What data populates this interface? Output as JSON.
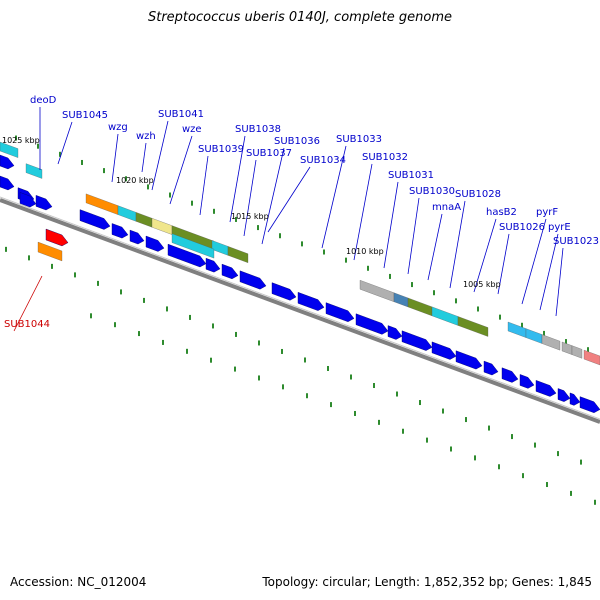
{
  "title": "Streptococcus uberis 0140J, complete genome",
  "footer": {
    "accession": "Accession: NC_012004",
    "info": "Topology: circular; Length: 1,852,352 bp; Genes: 1,845"
  },
  "colors": {
    "backbone": "#808080",
    "gene_arrow": "#0000ee",
    "label_blue": "#0000cc",
    "label_red": "#cc0000",
    "tick": "#2e8b2e",
    "cog_orange": "#ff8c00",
    "cog_cyan": "#22ccdd",
    "cog_olive": "#6b8e23",
    "cog_yellow": "#f0e68c",
    "cog_lightblue": "#33bbee",
    "cog_gray": "#b0b0b0",
    "cog_steel": "#4682b4",
    "cog_salmon": "#f08080",
    "highlight_red": "#ff0000"
  },
  "kbp_labels": [
    "1025 kbp",
    "1020 kbp",
    "1015 kbp",
    "1010 kbp",
    "1005 kbp"
  ],
  "gene_labels": [
    {
      "text": "deoD",
      "color": "blue"
    },
    {
      "text": "SUB1045",
      "color": "blue"
    },
    {
      "text": "wzg",
      "color": "blue"
    },
    {
      "text": "wzh",
      "color": "blue"
    },
    {
      "text": "SUB1041",
      "color": "blue"
    },
    {
      "text": "wze",
      "color": "blue"
    },
    {
      "text": "SUB1038",
      "color": "blue"
    },
    {
      "text": "SUB1039",
      "color": "blue"
    },
    {
      "text": "SUB1036",
      "color": "blue"
    },
    {
      "text": "SUB1037",
      "color": "blue"
    },
    {
      "text": "SUB1034",
      "color": "blue"
    },
    {
      "text": "SUB1033",
      "color": "blue"
    },
    {
      "text": "SUB1032",
      "color": "blue"
    },
    {
      "text": "SUB1031",
      "color": "blue"
    },
    {
      "text": "SUB1030",
      "color": "blue"
    },
    {
      "text": "mnaA",
      "color": "blue"
    },
    {
      "text": "SUB1028",
      "color": "blue"
    },
    {
      "text": "hasB2",
      "color": "blue"
    },
    {
      "text": "pyrF",
      "color": "blue"
    },
    {
      "text": "SUB1026",
      "color": "blue"
    },
    {
      "text": "pyrE",
      "color": "blue"
    },
    {
      "text": "SUB1023",
      "color": "blue"
    },
    {
      "text": "SUB1044",
      "color": "red"
    }
  ]
}
